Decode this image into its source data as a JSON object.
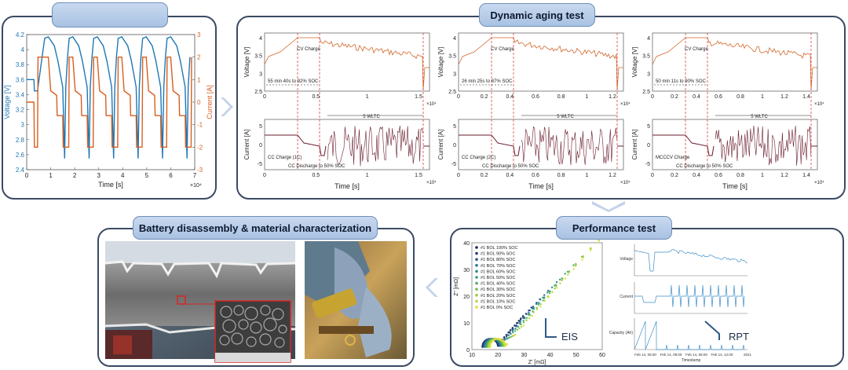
{
  "panels": {
    "aging": {
      "title": "Dynamic aging test"
    },
    "disassembly": {
      "title": "Battery disassembly & material characterization"
    },
    "performance": {
      "title": "Performance test"
    }
  },
  "profile": {
    "ylabel_left": "Voltage [V]",
    "ylabel_right": "Current [A]",
    "xlabel": "Time [s]",
    "x_multiplier": "×10⁴",
    "y_left_ticks": [
      "4.2",
      "4",
      "3.8",
      "3.6",
      "3.4",
      "3.2",
      "3",
      "2.8",
      "2.6",
      "2.4"
    ],
    "y_right_ticks": [
      "3",
      "2",
      "1",
      "0",
      "-1",
      "-2",
      "-3"
    ],
    "x_ticks": [
      "0",
      "1",
      "2",
      "3",
      "4",
      "5",
      "6",
      "7"
    ],
    "colors": {
      "voltage": "#1f77b4",
      "current": "#d95f1e"
    }
  },
  "aging_tests": [
    {
      "voltage_ylabel": "Voltage [V]",
      "current_ylabel": "Current [A]",
      "xlabel": "Time [s]",
      "x_multiplier": "×10⁴",
      "v_ticks": [
        "4",
        "3.5",
        "3",
        "2.5"
      ],
      "c_ticks": [
        "5",
        "0",
        "-5"
      ],
      "x_ticks": [
        "0",
        "0.5",
        "1",
        "1.5"
      ],
      "cv_label": "CV Charge",
      "charge_time_label": "55 min 40s to 92% SOC",
      "cc_charge_label": "CC Charge (1C)",
      "cc_discharge_label": "CC Discharge to 50% SOC",
      "wltc_label": "5 WLTC"
    },
    {
      "voltage_ylabel": "Voltage [V]",
      "current_ylabel": "Current [A]",
      "xlabel": "Time [s]",
      "x_multiplier": "×10⁴",
      "v_ticks": [
        "4",
        "3.5",
        "3",
        "2.5"
      ],
      "c_ticks": [
        "5",
        "0",
        "-5"
      ],
      "x_ticks": [
        "0",
        "0.2",
        "0.4",
        "0.6",
        "0.8",
        "1",
        "1.2"
      ],
      "cv_label": "CV Charge",
      "charge_time_label": "26 min 25s to 87% SOC",
      "cc_charge_label": "CC Charge (2C)",
      "cc_discharge_label": "CC Discharge to 50% SOC",
      "wltc_label": "5 WLTC"
    },
    {
      "voltage_ylabel": "Voltage [V]",
      "current_ylabel": "Current [A]",
      "xlabel": "Time [s]",
      "x_multiplier": "×10⁴",
      "v_ticks": [
        "4",
        "3.5",
        "3",
        "2.5"
      ],
      "c_ticks": [
        "5",
        "0",
        "-5"
      ],
      "x_ticks": [
        "0",
        "0.2",
        "0.4",
        "0.6",
        "0.8",
        "1",
        "1.2",
        "1.4"
      ],
      "cv_label": "CV Charge",
      "charge_time_label": "50 min 11s to 90% SOC",
      "cc_charge_label": "MCCCV Charge",
      "cc_discharge_label": "CC Discharge to 50% SOC",
      "wltc_label": "5 WLTC"
    }
  ],
  "eis": {
    "legend": [
      "#1 BOL 100% SOC",
      "#1 BOL 90% SOC",
      "#1 BOL 80% SOC",
      "#1 BOL 70% SOC",
      "#1 BOL 60% SOC",
      "#1 BOL 50% SOC",
      "#1 BOL 40% SOC",
      "#1 BOL 30% SOC",
      "#1 BOL 20% SOC",
      "#1 BOL 10% SOC",
      "#1 BOL 0% SOC"
    ],
    "colors": [
      "#1b2a5a",
      "#263f7a",
      "#2c5b8c",
      "#2f7592",
      "#2f8c8a",
      "#36a07a",
      "#4fb066",
      "#72c052",
      "#98cc44",
      "#bfd63a",
      "#e2de35"
    ],
    "xlabel": "Z' [mΩ]",
    "ylabel": "Z'' [mΩ]",
    "x_ticks": [
      "10",
      "20",
      "30",
      "40",
      "50",
      "60"
    ],
    "y_ticks": [
      "0",
      "10",
      "20",
      "30",
      "40"
    ],
    "tag": "EIS"
  },
  "rpt": {
    "tag": "RPT",
    "voltage_label": "Voltage",
    "current_label": "Current",
    "capacity_label": "Capacity (Ah)",
    "x_label": "Timestamp",
    "x_ticks": [
      "Feb 14, 06:00",
      "Feb 14, 09:00",
      "Feb 14, 06:00",
      "Feb 14, 12:00",
      "2021"
    ]
  }
}
